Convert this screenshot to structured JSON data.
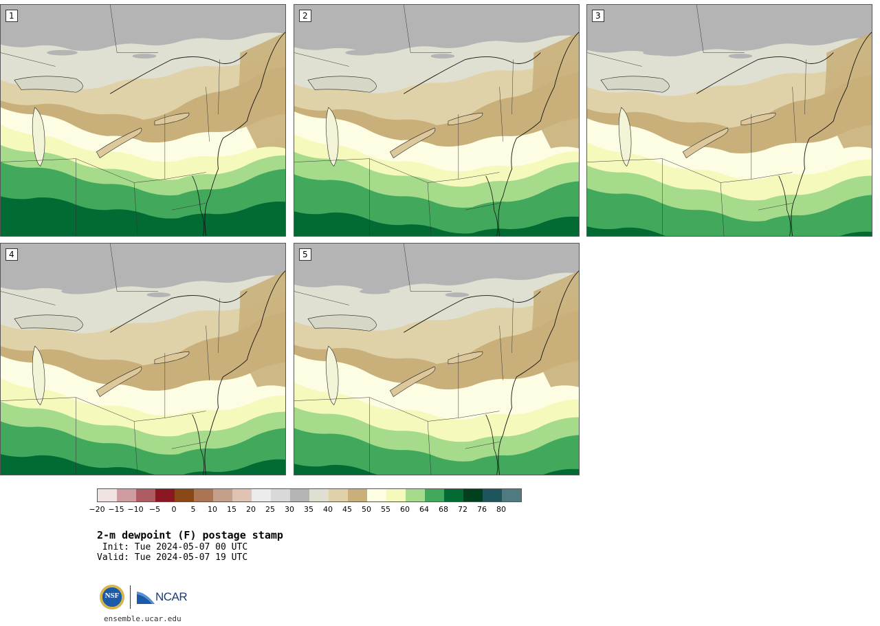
{
  "panels": [
    {
      "label": "1"
    },
    {
      "label": "2"
    },
    {
      "label": "3"
    },
    {
      "label": "4"
    },
    {
      "label": "5"
    }
  ],
  "colorbar": {
    "colors": [
      "#f0e4e2",
      "#cf9da1",
      "#ad5c63",
      "#8a1721",
      "#8a4716",
      "#ab7554",
      "#c4a08a",
      "#dfc3b4",
      "#ececec",
      "#d9d9d9",
      "#b4b4b4",
      "#e0e0d2",
      "#e0d2a8",
      "#c9b07a",
      "#fdfde3",
      "#f5f9bc",
      "#a6db8c",
      "#41a85c",
      "#026b34",
      "#00401c",
      "#1e555c",
      "#4f7a80"
    ],
    "ticks": [
      "−20",
      "−15",
      "−10",
      "−5",
      "0",
      "5",
      "10",
      "15",
      "20",
      "25",
      "30",
      "35",
      "40",
      "45",
      "50",
      "55",
      "60",
      "64",
      "68",
      "72",
      "76",
      "80"
    ]
  },
  "title": {
    "main": "2-m dewpoint (F) postage stamp",
    "init": " Init: Tue 2024-05-07 00 UTC",
    "valid": "Valid: Tue 2024-05-07 19 UTC"
  },
  "footer": {
    "nsf_text": "NSF",
    "ncar_text": "NCAR",
    "site": "ensemble.ucar.edu"
  }
}
